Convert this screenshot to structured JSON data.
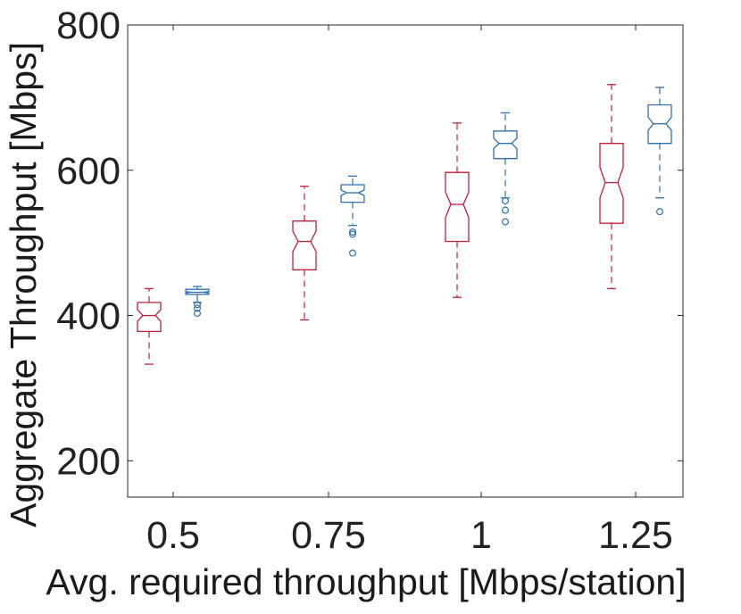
{
  "chart_data": {
    "type": "box",
    "xlabel": "Avg. required throughput [Mbps/station]",
    "ylabel": "Aggregate Throughput [Mbps]",
    "categories": [
      "0.5",
      "0.75",
      "1",
      "1.25"
    ],
    "y_ticks": [
      "200",
      "400",
      "600",
      "800"
    ],
    "ylim": [
      150,
      800
    ],
    "grid": false,
    "notched": true,
    "series": [
      {
        "color": "#c0203a",
        "boxes": [
          {
            "min": 333,
            "q1": 378,
            "median": 400,
            "q3": 418,
            "max": 437,
            "notch_low": 392,
            "notch_high": 408,
            "outliers": []
          },
          {
            "min": 394,
            "q1": 463,
            "median": 502,
            "q3": 530,
            "max": 578,
            "notch_low": 488,
            "notch_high": 516,
            "outliers": []
          },
          {
            "min": 425,
            "q1": 502,
            "median": 553,
            "q3": 597,
            "max": 665,
            "notch_low": 535,
            "notch_high": 570,
            "outliers": []
          },
          {
            "min": 437,
            "q1": 527,
            "median": 583,
            "q3": 637,
            "max": 718,
            "notch_low": 562,
            "notch_high": 604,
            "outliers": []
          }
        ]
      },
      {
        "color": "#2f6fb0",
        "boxes": [
          {
            "min": 418,
            "q1": 429,
            "median": 432,
            "q3": 436,
            "max": 440,
            "notch_low": 431,
            "notch_high": 433,
            "outliers": [
              410,
              403,
              415
            ]
          },
          {
            "min": 524,
            "q1": 556,
            "median": 569,
            "q3": 580,
            "max": 592,
            "notch_low": 565,
            "notch_high": 573,
            "outliers": [
              515,
              512,
              486
            ]
          },
          {
            "min": 562,
            "q1": 616,
            "median": 637,
            "q3": 654,
            "max": 679,
            "notch_low": 630,
            "notch_high": 644,
            "outliers": [
              558,
              545,
              529
            ]
          },
          {
            "min": 562,
            "q1": 637,
            "median": 664,
            "q3": 690,
            "max": 714,
            "notch_low": 655,
            "notch_high": 673,
            "outliers": [
              543
            ]
          }
        ]
      }
    ]
  }
}
